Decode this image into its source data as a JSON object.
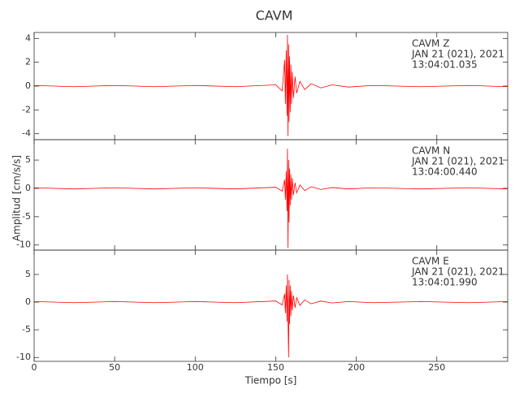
{
  "chart_data": [
    {
      "type": "line",
      "title": "CAVM",
      "annotations": [
        "CAVM   Z",
        "JAN 21 (021), 2021",
        "13:04:01.035"
      ],
      "x": [
        0,
        25,
        50,
        75,
        100,
        125,
        150,
        154,
        155.5,
        156,
        156.5,
        157,
        157.3,
        157.6,
        158,
        158.3,
        158.6,
        159,
        159.4,
        159.8,
        160.3,
        161,
        162,
        163,
        165,
        168,
        172,
        178,
        185,
        195,
        210,
        240,
        270,
        294
      ],
      "series": [
        {
          "color": "#ff0000",
          "values": [
            0.05,
            -0.05,
            0.05,
            -0.05,
            0.05,
            -0.05,
            0.1,
            -0.4,
            2.2,
            -1.5,
            3.0,
            -2.5,
            4.3,
            -4.2,
            3.5,
            -3.0,
            2.5,
            -2.2,
            1.8,
            -1.5,
            1.2,
            -1.0,
            0.8,
            -0.6,
            0.4,
            -0.3,
            0.2,
            -0.15,
            0.1,
            -0.08,
            0.05,
            -0.05,
            0.05,
            -0.05
          ]
        }
      ],
      "xlim": [
        0,
        294
      ],
      "ylim": [
        -4.5,
        4.5
      ],
      "yticks": [
        -4,
        -2,
        0,
        2,
        4
      ]
    },
    {
      "type": "line",
      "y_label": "Amplitud [cm/s/s]",
      "annotations": [
        "CAVM   N",
        "JAN 21 (021), 2021",
        "13:04:00.440"
      ],
      "x": [
        0,
        25,
        50,
        75,
        100,
        125,
        150,
        154,
        155.5,
        156,
        156.5,
        157,
        157.3,
        157.6,
        158,
        158.3,
        158.6,
        159,
        159.4,
        159.8,
        160.3,
        161,
        162,
        163,
        165,
        168,
        172,
        178,
        185,
        195,
        210,
        240,
        270,
        294
      ],
      "series": [
        {
          "color": "#ff0000",
          "values": [
            0.1,
            -0.1,
            0.1,
            -0.1,
            0.1,
            -0.1,
            0.2,
            -0.5,
            1.5,
            -2,
            3,
            -4,
            7,
            -10.5,
            5,
            -6,
            3.5,
            -3,
            2.5,
            -2,
            1.8,
            -1.2,
            1,
            -0.8,
            0.6,
            -0.4,
            0.3,
            -0.2,
            0.15,
            -0.1,
            0.1,
            -0.1,
            0.1,
            -0.1
          ]
        }
      ],
      "xlim": [
        0,
        294
      ],
      "ylim": [
        -10.9,
        8.6
      ],
      "yticks": [
        -10,
        -5,
        0,
        5
      ]
    },
    {
      "type": "line",
      "x_label": "Tiempo [s]",
      "annotations": [
        "CAVM   E",
        "JAN 21 (021), 2021",
        "13:04:01.990"
      ],
      "x": [
        0,
        25,
        50,
        75,
        100,
        125,
        150,
        154,
        155.5,
        156,
        156.5,
        157,
        157.3,
        157.6,
        158,
        158.3,
        158.6,
        159,
        159.4,
        159.8,
        160.3,
        161,
        162,
        163,
        165,
        168,
        172,
        178,
        185,
        195,
        210,
        240,
        270,
        294
      ],
      "series": [
        {
          "color": "#ff0000",
          "values": [
            0.1,
            -0.1,
            0.1,
            -0.1,
            0.1,
            -0.1,
            0.2,
            -0.5,
            1.5,
            -2,
            3,
            -3.5,
            5,
            -3,
            -10,
            4,
            -4,
            3,
            -2.5,
            2,
            -1.5,
            1.2,
            -1,
            0.8,
            -0.6,
            0.4,
            -0.3,
            0.2,
            -0.15,
            0.1,
            -0.1,
            0.1,
            -0.1,
            0.1
          ]
        }
      ],
      "xlim": [
        0,
        294
      ],
      "ylim": [
        -10.7,
        9.4
      ],
      "yticks": [
        -10,
        -5,
        0,
        5
      ],
      "xticks": [
        0,
        50,
        100,
        150,
        200,
        250
      ]
    }
  ]
}
